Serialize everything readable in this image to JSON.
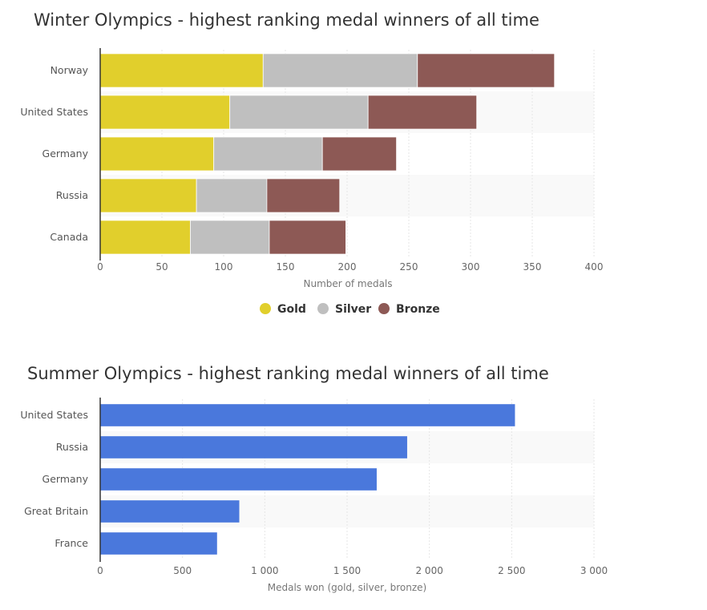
{
  "colors": {
    "gold": "#e1cf2c",
    "silver": "#bfbfbf",
    "bronze": "#8d5955",
    "summer": "#4a78dc",
    "band": "#f9f9f9",
    "grid": "#e6e6e6"
  },
  "chart_data": [
    {
      "type": "bar",
      "orientation": "horizontal",
      "stacked": true,
      "title": "Winter Olympics - highest ranking medal winners of all time",
      "categories": [
        "Norway",
        "United States",
        "Germany",
        "Russia",
        "Canada"
      ],
      "series": [
        {
          "name": "Gold",
          "color": "#e1cf2c",
          "values": [
            132,
            105,
            92,
            78,
            73
          ]
        },
        {
          "name": "Silver",
          "color": "#bfbfbf",
          "values": [
            125,
            112,
            88,
            57,
            64
          ]
        },
        {
          "name": "Bronze",
          "color": "#8d5955",
          "values": [
            111,
            88,
            60,
            59,
            62
          ]
        }
      ],
      "xlabel": "Number of medals",
      "xlim": [
        0,
        400
      ],
      "xticks": [
        "0",
        "50",
        "100",
        "150",
        "200",
        "250",
        "300",
        "350",
        "400"
      ],
      "legend": "bottom-center",
      "grid": true
    },
    {
      "type": "bar",
      "orientation": "horizontal",
      "stacked": false,
      "title": "Summer Olympics - highest ranking medal winners of all time",
      "categories": [
        "United States",
        "Russia",
        "Germany",
        "Great Britain",
        "France"
      ],
      "series": [
        {
          "values": [
            2520,
            1865,
            1680,
            845,
            710
          ]
        }
      ],
      "xlabel": "Medals won (gold, silver, bronze)",
      "xlim": [
        0,
        3000
      ],
      "xticks": [
        "0",
        "500",
        "1 000",
        "1 500",
        "2 000",
        "2 500",
        "3 000"
      ],
      "grid": true
    }
  ]
}
